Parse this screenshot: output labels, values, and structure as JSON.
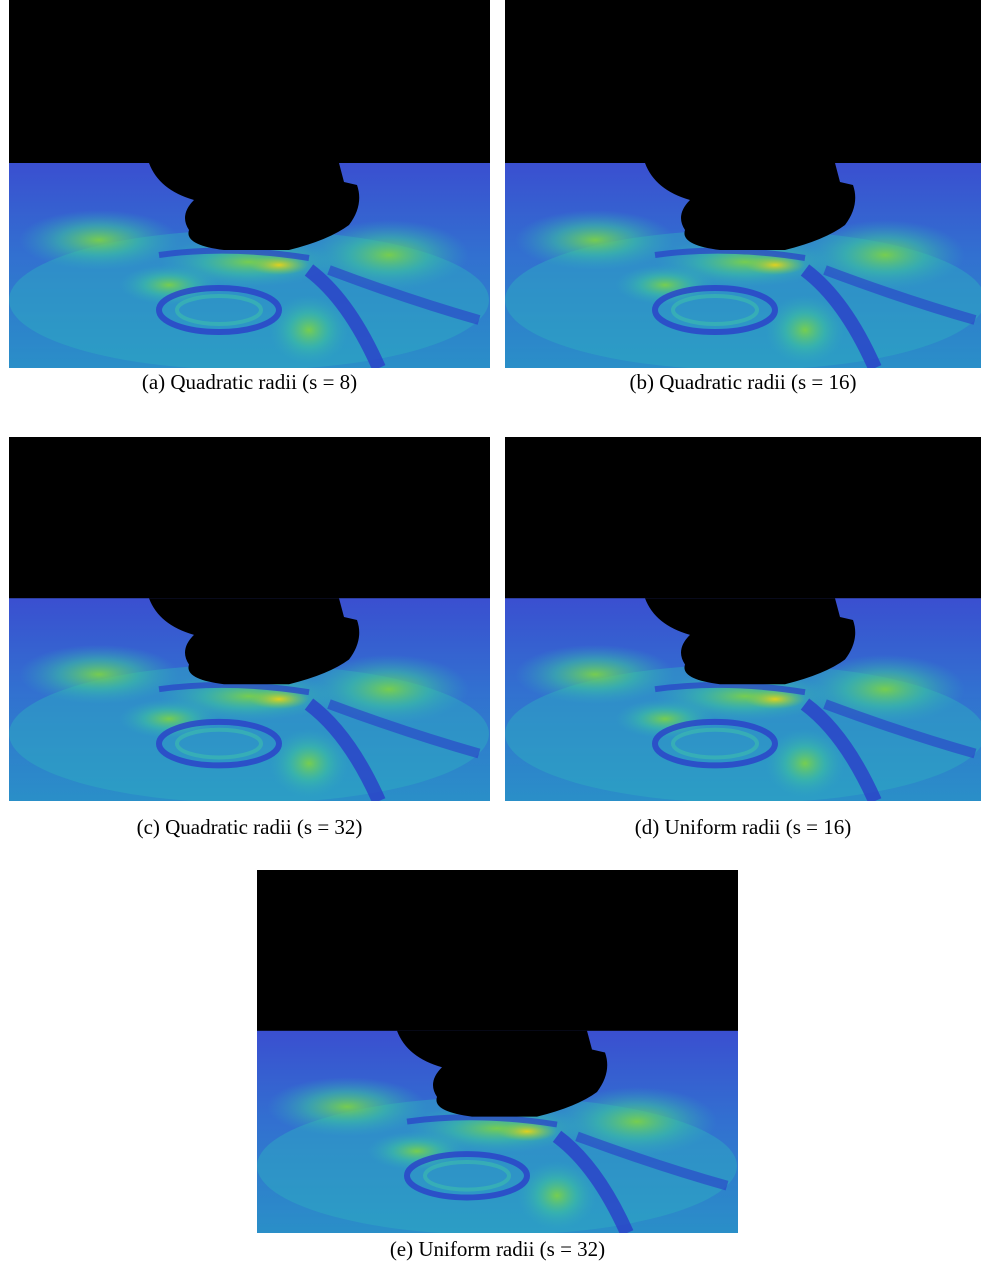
{
  "figures": [
    {
      "caption": "(a) Quadratic radii (s = 8)"
    },
    {
      "caption": "(b) Quadratic radii (s = 16)"
    },
    {
      "caption": "(c) Quadratic radii (s = 32)"
    },
    {
      "caption": "(d) Uniform radii (s = 16)"
    },
    {
      "caption": "(e) Uniform radii (s = 32)"
    }
  ]
}
